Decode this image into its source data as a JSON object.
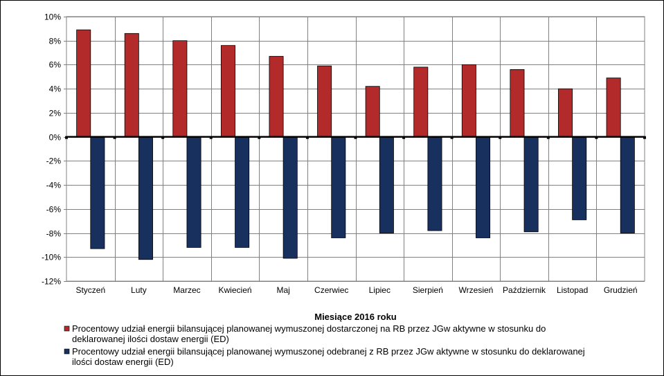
{
  "chart_data": {
    "type": "bar",
    "xlabel": "Miesiące 2016  roku",
    "ylabel": "",
    "ylim": [
      -12,
      10
    ],
    "ytick_step": 2,
    "ytick_suffix": "%",
    "grid": true,
    "legend_position": "bottom",
    "categories": [
      "Styczeń",
      "Luty",
      "Marzec",
      "Kwiecień",
      "Maj",
      "Czerwiec",
      "Lipiec",
      "Sierpień",
      "Wrzesień",
      "Październik",
      "Listopad",
      "Grudzień"
    ],
    "series": [
      {
        "name": "Procentowy udział energii bilansującej planowanej wymuszonej dostarczonej na RB przez JGw aktywne w stosunku do deklarowanej ilości dostaw energii (ED)",
        "color": "#B22A2A",
        "values": [
          8.9,
          8.6,
          8.0,
          7.6,
          6.7,
          5.9,
          4.2,
          5.8,
          6.0,
          5.6,
          4.0,
          4.9
        ]
      },
      {
        "name": "Procentowy udział energii bilansującej planowanej wymuszonej odebranej z RB przez JGw aktywne w stosunku do deklarowanej ilości dostaw energii (ED)",
        "color": "#18305E",
        "values": [
          -9.3,
          -10.2,
          -9.2,
          -9.2,
          -10.1,
          -8.4,
          -8.0,
          -7.8,
          -8.4,
          -7.9,
          -6.9,
          -8.0
        ]
      }
    ],
    "legend_lines": [
      [
        "Procentowy udział energii bilansującej planowanej wymuszonej dostarczonej na RB przez JGw aktywne w stosunku do",
        "deklarowanej ilości dostaw energii (ED)"
      ],
      [
        "Procentowy udział energii bilansującej planowanej wymuszonej odebranej z RB przez JGw aktywne w stosunku do deklarowanej",
        "ilości dostaw energii (ED)"
      ]
    ]
  }
}
